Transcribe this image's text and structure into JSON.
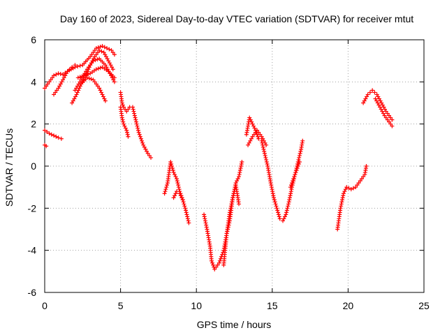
{
  "chart_data": {
    "type": "scatter",
    "title": "Day 160 of 2023, Sidereal Day-to-day VTEC variation (SDTVAR) for receiver mtut",
    "xlabel": "GPS time / hours",
    "ylabel": "SDTVAR / TECUs",
    "xlim": [
      0,
      25
    ],
    "ylim": [
      -6,
      6
    ],
    "xticks": [
      "0",
      "5",
      "10",
      "15",
      "20",
      "25"
    ],
    "yticks": [
      "-6",
      "-4",
      "-2",
      "0",
      "2",
      "4",
      "6"
    ],
    "grid": true,
    "marker": "plus",
    "color": "#ff0000",
    "series": [
      {
        "x": [
          0.0,
          0.3,
          0.6,
          0.9,
          1.1
        ],
        "y": [
          1.7,
          1.55,
          1.45,
          1.35,
          1.3
        ]
      },
      {
        "x": [
          0.0,
          0.1
        ],
        "y": [
          1.0,
          0.95
        ]
      },
      {
        "x": [
          0.0,
          0.3,
          0.6,
          0.9,
          1.2,
          1.5,
          1.8,
          2.0
        ],
        "y": [
          3.7,
          4.0,
          4.3,
          4.4,
          4.35,
          4.5,
          4.7,
          4.8
        ]
      },
      {
        "x": [
          0.6,
          0.9,
          1.2,
          1.5,
          2.0,
          2.5,
          3.0,
          3.4,
          3.8,
          4.1,
          4.4,
          4.6
        ],
        "y": [
          3.4,
          3.7,
          4.1,
          4.5,
          4.7,
          4.8,
          5.2,
          5.6,
          5.7,
          5.6,
          5.5,
          5.3
        ]
      },
      {
        "x": [
          1.8,
          2.1,
          2.4,
          2.7,
          3.0,
          3.3,
          3.6,
          3.9,
          4.2,
          4.5
        ],
        "y": [
          3.0,
          3.4,
          3.9,
          4.3,
          4.8,
          5.2,
          5.5,
          5.4,
          5.0,
          4.6
        ]
      },
      {
        "x": [
          2.0,
          2.4,
          2.8,
          3.2,
          3.6,
          4.0,
          4.3,
          4.6
        ],
        "y": [
          3.6,
          4.1,
          4.6,
          5.0,
          5.1,
          4.8,
          4.4,
          4.0
        ]
      },
      {
        "x": [
          2.2,
          2.6,
          3.0,
          3.4,
          3.8,
          4.2,
          4.6
        ],
        "y": [
          4.2,
          4.3,
          4.4,
          4.6,
          4.7,
          4.5,
          4.2
        ]
      },
      {
        "x": [
          2.4,
          2.8,
          3.2,
          3.6,
          4.0
        ],
        "y": [
          3.9,
          4.2,
          4.1,
          3.7,
          3.1
        ]
      },
      {
        "x": [
          5.0,
          5.1,
          5.2,
          5.4,
          5.6,
          5.8,
          6.0,
          6.2,
          6.5,
          6.8,
          7.0
        ],
        "y": [
          3.5,
          3.0,
          2.8,
          2.6,
          2.8,
          2.8,
          2.2,
          1.6,
          1.0,
          0.6,
          0.4
        ]
      },
      {
        "x": [
          5.0,
          5.1,
          5.2,
          5.4,
          5.5
        ],
        "y": [
          2.8,
          2.3,
          2.0,
          1.7,
          1.4
        ]
      },
      {
        "x": [
          7.9,
          8.1,
          8.3,
          8.5,
          8.7,
          8.9,
          9.1,
          9.3,
          9.5
        ],
        "y": [
          -1.3,
          -0.8,
          0.2,
          -0.3,
          -0.6,
          -1.2,
          -1.6,
          -2.1,
          -2.7
        ]
      },
      {
        "x": [
          8.5,
          8.7,
          8.9,
          9.1
        ],
        "y": [
          -1.5,
          -1.2,
          -1.3,
          -1.6
        ]
      },
      {
        "x": [
          10.5,
          10.7,
          10.9,
          11.0,
          11.2,
          11.5,
          11.8,
          12.0,
          12.2,
          12.4,
          12.6,
          12.8,
          13.0
        ],
        "y": [
          -2.3,
          -3.0,
          -3.8,
          -4.5,
          -4.9,
          -4.6,
          -4.0,
          -3.2,
          -2.6,
          -1.5,
          -0.8,
          -0.5,
          0.2
        ]
      },
      {
        "x": [
          11.8,
          12.0,
          12.2,
          12.4,
          12.6,
          12.8
        ],
        "y": [
          -4.7,
          -3.2,
          -2.2,
          -1.5,
          -0.9,
          -1.8
        ]
      },
      {
        "x": [
          13.3,
          13.5,
          13.7,
          13.9,
          14.1,
          14.3,
          14.5,
          14.7,
          14.9,
          15.1,
          15.3,
          15.5,
          15.7,
          15.9,
          16.1,
          16.3,
          16.5,
          16.7,
          16.9,
          17.0
        ],
        "y": [
          1.5,
          2.3,
          2.0,
          1.7,
          1.3,
          1.2,
          0.6,
          0.0,
          -0.8,
          -1.5,
          -2.0,
          -2.5,
          -2.6,
          -2.3,
          -1.7,
          -1.0,
          -0.4,
          0.2,
          0.8,
          1.2
        ]
      },
      {
        "x": [
          13.4,
          13.7,
          14.0,
          14.3,
          14.6
        ],
        "y": [
          1.0,
          1.4,
          1.7,
          1.4,
          1.0
        ]
      },
      {
        "x": [
          16.2,
          16.4,
          16.6,
          16.8
        ],
        "y": [
          -1.0,
          -0.6,
          -0.2,
          0.2
        ]
      },
      {
        "x": [
          19.3,
          19.5,
          19.7,
          19.9,
          20.2,
          20.5,
          20.8,
          21.1,
          21.2
        ],
        "y": [
          -3.0,
          -2.0,
          -1.3,
          -1.0,
          -1.1,
          -1.0,
          -0.7,
          -0.4,
          0.0
        ]
      },
      {
        "x": [
          21.0,
          21.3,
          21.6,
          21.9,
          22.2,
          22.5,
          22.8,
          22.9
        ],
        "y": [
          3.0,
          3.4,
          3.6,
          3.4,
          3.0,
          2.6,
          2.3,
          2.2
        ]
      },
      {
        "x": [
          21.8,
          22.1,
          22.4,
          22.7,
          22.9
        ],
        "y": [
          3.2,
          2.8,
          2.4,
          2.1,
          1.9
        ]
      }
    ]
  }
}
